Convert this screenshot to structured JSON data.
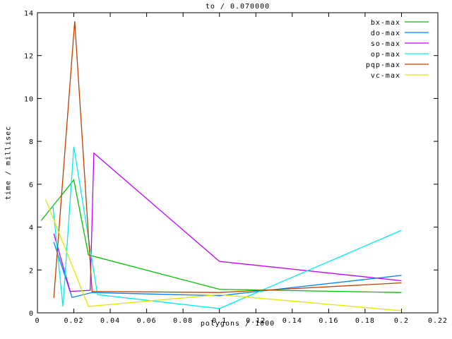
{
  "window": {
    "kind": "gnuplot-chart"
  },
  "chart_data": {
    "type": "line",
    "title": "to / 0.070000",
    "xlabel": "polygons / 1000",
    "ylabel": "time / millisec",
    "xlim": [
      0,
      0.22
    ],
    "ylim": [
      0,
      14
    ],
    "grid": false,
    "legend_position": "top-right-inside",
    "xticks": {
      "values": [
        0,
        0.02,
        0.04,
        0.06,
        0.08,
        0.1,
        0.12,
        0.14,
        0.16,
        0.18,
        0.2,
        0.22
      ],
      "labels": [
        "0",
        "0.02",
        "0.04",
        "0.06",
        "0.08",
        "0.1",
        "0.12",
        "0.14",
        "0.16",
        "0.18",
        "0.2",
        "0.22"
      ]
    },
    "yticks": {
      "values": [
        0,
        2,
        4,
        6,
        8,
        10,
        12,
        14
      ],
      "labels": [
        "0",
        "2",
        "4",
        "6",
        "8",
        "10",
        "12",
        "14"
      ]
    },
    "axis_color": "#000000",
    "series": [
      {
        "name": "bx-max",
        "color": "#00c000",
        "points": [
          [
            0.002,
            4.3
          ],
          [
            0.02,
            6.2
          ],
          [
            0.028,
            2.7
          ],
          [
            0.1,
            1.1
          ],
          [
            0.2,
            0.95
          ]
        ]
      },
      {
        "name": "do-max",
        "color": "#0080ff",
        "points": [
          [
            0.009,
            3.3
          ],
          [
            0.019,
            0.72
          ],
          [
            0.03,
            0.95
          ],
          [
            0.1,
            0.8
          ],
          [
            0.2,
            1.75
          ]
        ]
      },
      {
        "name": "so-max",
        "color": "#c000ff",
        "points": [
          [
            0.009,
            3.7
          ],
          [
            0.018,
            1.0
          ],
          [
            0.029,
            1.05
          ],
          [
            0.031,
            7.45
          ],
          [
            0.1,
            2.4
          ],
          [
            0.2,
            1.5
          ]
        ]
      },
      {
        "name": "op-max",
        "color": "#00eeee",
        "points": [
          [
            0.0085,
            5.0
          ],
          [
            0.014,
            0.3
          ],
          [
            0.02,
            7.75
          ],
          [
            0.033,
            0.85
          ],
          [
            0.1,
            0.2
          ],
          [
            0.2,
            3.85
          ]
        ]
      },
      {
        "name": "pqp-max",
        "color": "#c04000",
        "points": [
          [
            0.009,
            0.7
          ],
          [
            0.0205,
            13.6
          ],
          [
            0.03,
            1.0
          ],
          [
            0.1,
            0.95
          ],
          [
            0.2,
            1.4
          ]
        ]
      },
      {
        "name": "vc-max",
        "color": "#e5e500",
        "points": [
          [
            0.0045,
            5.3
          ],
          [
            0.028,
            0.3
          ],
          [
            0.1,
            0.85
          ],
          [
            0.2,
            0.1
          ]
        ]
      }
    ]
  }
}
